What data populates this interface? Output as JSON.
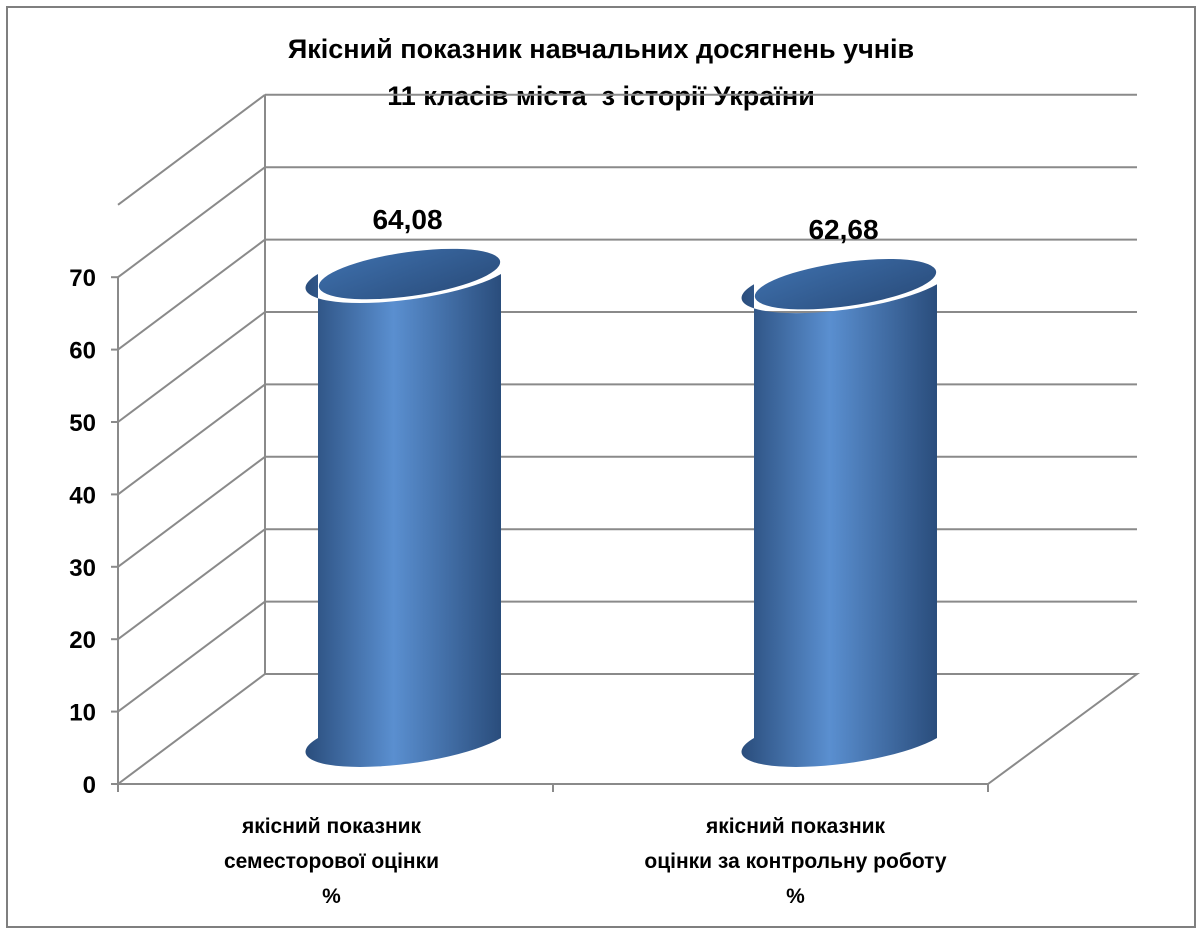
{
  "chart_data": {
    "type": "bar",
    "title_lines": [
      "Якісний показник навчальних досягнень учнів",
      "11 класів міста  з історії України"
    ],
    "categories": [
      [
        "якісний показник",
        "семесторової оцінки",
        "%"
      ],
      [
        "якісний показник",
        "оцінки за контрольну роботу",
        "%"
      ]
    ],
    "values": [
      64.08,
      62.68
    ],
    "value_labels": [
      "64,08",
      "62,68"
    ],
    "ylim": [
      0,
      70
    ],
    "yticks": [
      0,
      10,
      20,
      30,
      40,
      50,
      60,
      70
    ],
    "grid": true,
    "legend": "none",
    "style": "3d-cylinder",
    "colors": {
      "bar_dark": "#2a4d7c",
      "bar_mid": "#3d6eaa",
      "bar_light": "#5a8fd0",
      "gridline": "#8a8a8a",
      "frame": "#7f7f7f"
    }
  }
}
